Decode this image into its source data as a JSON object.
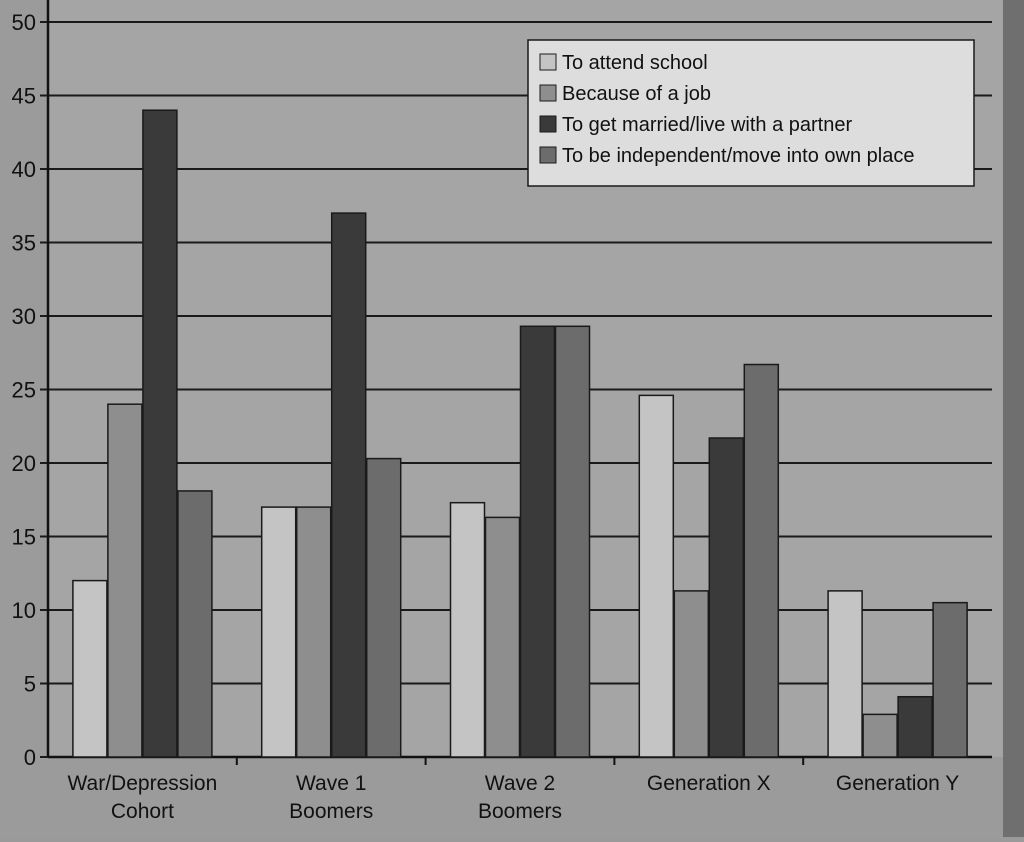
{
  "chart_data": {
    "type": "bar",
    "title": "",
    "xlabel": "",
    "ylabel": "",
    "ylim": [
      0,
      50
    ],
    "yticks": [
      0,
      5,
      10,
      15,
      20,
      25,
      30,
      35,
      40,
      45,
      50
    ],
    "grid": true,
    "legend_position": "top-right",
    "categories": [
      [
        "War/Depression",
        "Cohort"
      ],
      [
        "Wave 1",
        "Boomers"
      ],
      [
        "Wave 2",
        "Boomers"
      ],
      [
        "Generation X"
      ],
      [
        "Generation Y"
      ]
    ],
    "series": [
      {
        "name": "To attend school",
        "color": "#c4c4c4",
        "values": [
          12,
          17,
          17.3,
          24.6,
          11.3
        ]
      },
      {
        "name": "Because of a job",
        "color": "#8e8e8e",
        "values": [
          24,
          17,
          16.3,
          11.3,
          2.9
        ]
      },
      {
        "name": "To get married/live with a partner",
        "color": "#3a3a3a",
        "values": [
          44,
          37,
          29.3,
          21.7,
          4.1
        ]
      },
      {
        "name": "To be independent/move into own place",
        "color": "#6c6c6c",
        "values": [
          18.1,
          20.3,
          29.3,
          26.7,
          10.5
        ]
      }
    ]
  }
}
